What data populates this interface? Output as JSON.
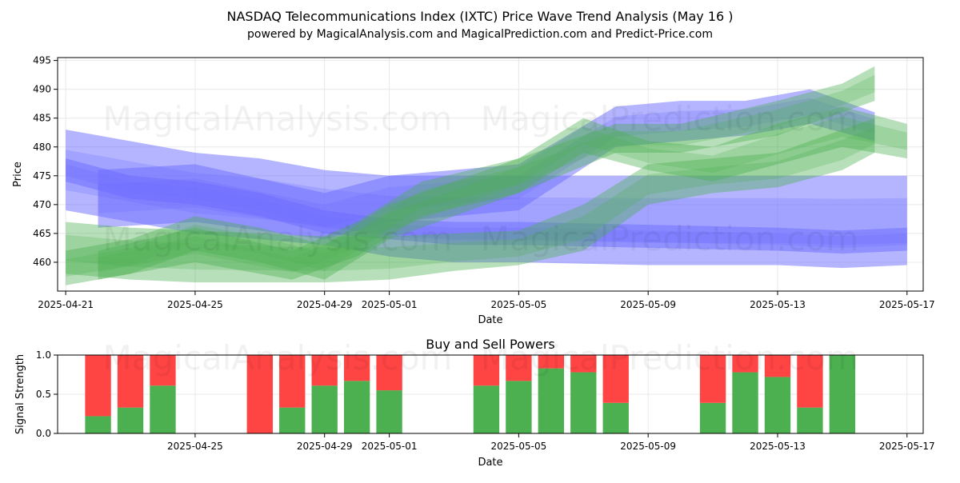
{
  "header": {
    "title_line1": "NASDAQ Telecommunications Index (IXTC) Price Wave Trend Analysis (May 16 )",
    "title_line2": "powered by MagicalAnalysis.com and MagicalPrediction.com and Predict-Price.com"
  },
  "watermarks": [
    "MagicalAnalysis.com",
    "MagicalPrediction.com"
  ],
  "colors": {
    "blue_band": "#6b6bff",
    "green_band": "#4caf50",
    "buy": "#4caf50",
    "sell": "#ff4444",
    "grid": "#e8e8e8"
  },
  "chart_data": [
    {
      "type": "area",
      "title": "",
      "xlabel": "Date",
      "ylabel": "Price",
      "x_ticks": [
        "2025-04-21",
        "2025-04-25",
        "2025-04-29",
        "2025-05-01",
        "2025-05-05",
        "2025-05-09",
        "2025-05-13",
        "2025-05-17"
      ],
      "y_ticks": [
        460,
        465,
        470,
        475,
        480,
        485,
        490,
        495
      ],
      "xlim": [
        "2025-04-20T18:00",
        "2025-05-17T12:00"
      ],
      "ylim": [
        455,
        495.5
      ],
      "grid": true,
      "series": [
        {
          "color": "blue",
          "x": [
            "2025-04-21",
            "2025-04-23",
            "2025-04-25",
            "2025-04-27",
            "2025-04-29",
            "2025-05-01",
            "2025-05-03",
            "2025-05-05",
            "2025-05-09",
            "2025-05-13",
            "2025-05-15",
            "2025-05-17"
          ],
          "upper": [
            483,
            481,
            479,
            478,
            476,
            475,
            475,
            475,
            475,
            475,
            475,
            475
          ],
          "lower": [
            469,
            467,
            465,
            464,
            463,
            461,
            460,
            460,
            459.5,
            459.5,
            459,
            459.5
          ]
        },
        {
          "color": "blue",
          "x": [
            "2025-04-21",
            "2025-04-23",
            "2025-04-25",
            "2025-04-27",
            "2025-04-29",
            "2025-05-01",
            "2025-05-03",
            "2025-05-05",
            "2025-05-09",
            "2025-05-13",
            "2025-05-15",
            "2025-05-17"
          ],
          "upper": [
            478,
            475,
            474,
            472,
            469,
            467.5,
            467,
            467,
            466.5,
            466,
            465.5,
            466
          ],
          "lower": [
            474,
            471,
            470,
            468,
            465,
            464,
            463,
            463,
            462.5,
            462,
            461.5,
            462
          ]
        },
        {
          "color": "blue",
          "x": [
            "2025-04-22",
            "2025-04-25",
            "2025-04-29",
            "2025-05-01",
            "2025-05-05",
            "2025-05-08",
            "2025-05-10",
            "2025-05-12",
            "2025-05-14",
            "2025-05-16"
          ],
          "upper": [
            476,
            477,
            472,
            475,
            477,
            487,
            488,
            488,
            490,
            486
          ],
          "lower": [
            466,
            467,
            464,
            467,
            469,
            480,
            481,
            482,
            484,
            481
          ]
        },
        {
          "color": "green",
          "x": [
            "2025-04-21",
            "2025-04-23",
            "2025-04-25",
            "2025-04-27",
            "2025-04-29",
            "2025-05-01",
            "2025-05-03",
            "2025-05-05",
            "2025-05-07",
            "2025-05-09",
            "2025-05-11",
            "2025-05-13",
            "2025-05-15",
            "2025-05-16"
          ],
          "upper": [
            467,
            466,
            465.5,
            465,
            464.5,
            464.5,
            465,
            465.5,
            470,
            477,
            478,
            479,
            483,
            485
          ],
          "lower": [
            458,
            457,
            456.5,
            456.5,
            456.5,
            457,
            458.5,
            459.5,
            462,
            470,
            472,
            473,
            476,
            479
          ]
        },
        {
          "color": "green",
          "x": [
            "2025-04-21",
            "2025-04-23",
            "2025-04-25",
            "2025-04-27",
            "2025-04-29",
            "2025-05-01",
            "2025-05-03",
            "2025-05-05",
            "2025-05-07",
            "2025-05-09",
            "2025-05-11",
            "2025-05-13",
            "2025-05-15",
            "2025-05-17"
          ],
          "upper": [
            462,
            464,
            468,
            466,
            463,
            470,
            474,
            478,
            485,
            481,
            480,
            484,
            487,
            484
          ],
          "lower": [
            456,
            458,
            462,
            460,
            457,
            464,
            468,
            472,
            479,
            476,
            474,
            477,
            480,
            478
          ]
        },
        {
          "color": "green",
          "x": [
            "2025-04-22",
            "2025-04-25",
            "2025-04-28",
            "2025-04-30",
            "2025-05-02",
            "2025-05-05",
            "2025-05-08",
            "2025-05-10",
            "2025-05-13",
            "2025-05-15",
            "2025-05-16"
          ],
          "upper": [
            462,
            466,
            462,
            467,
            474,
            478,
            484,
            484,
            488,
            491,
            494
          ],
          "lower": [
            457,
            460,
            457,
            461,
            468,
            472,
            479,
            479,
            482,
            486,
            488
          ]
        }
      ]
    },
    {
      "type": "bar",
      "title": "Buy and Sell Powers",
      "xlabel": "Date",
      "ylabel": "Signal Strength",
      "x_ticks": [
        "2025-04-25",
        "2025-04-29",
        "2025-05-01",
        "2025-05-05",
        "2025-05-09",
        "2025-05-13",
        "2025-05-17"
      ],
      "y_ticks": [
        0.0,
        0.5,
        1.0
      ],
      "y_tick_labels": [
        "0.0",
        "0.5",
        "1.0"
      ],
      "ylim": [
        0,
        1
      ],
      "xlim": [
        "2025-04-20T18:00",
        "2025-05-17T12:00"
      ],
      "grid": true,
      "categories": [
        "2025-04-22",
        "2025-04-23",
        "2025-04-24",
        "2025-04-27",
        "2025-04-28",
        "2025-04-29",
        "2025-04-30",
        "2025-05-01",
        "2025-05-04",
        "2025-05-05",
        "2025-05-06",
        "2025-05-07",
        "2025-05-08",
        "2025-05-11",
        "2025-05-12",
        "2025-05-13",
        "2025-05-14",
        "2025-05-15"
      ],
      "series": [
        {
          "name": "Buy",
          "color": "#4caf50",
          "values": [
            0.22,
            0.33,
            0.61,
            0.0,
            0.33,
            0.61,
            0.67,
            0.55,
            0.61,
            0.67,
            0.83,
            0.78,
            0.39,
            0.39,
            0.78,
            0.72,
            0.33,
            1.0
          ]
        },
        {
          "name": "Sell",
          "color": "#ff4444",
          "values": [
            0.78,
            0.67,
            0.39,
            1.0,
            0.67,
            0.39,
            0.33,
            0.45,
            0.39,
            0.33,
            0.17,
            0.22,
            0.61,
            0.61,
            0.22,
            0.28,
            0.67,
            0.0
          ]
        }
      ]
    }
  ]
}
